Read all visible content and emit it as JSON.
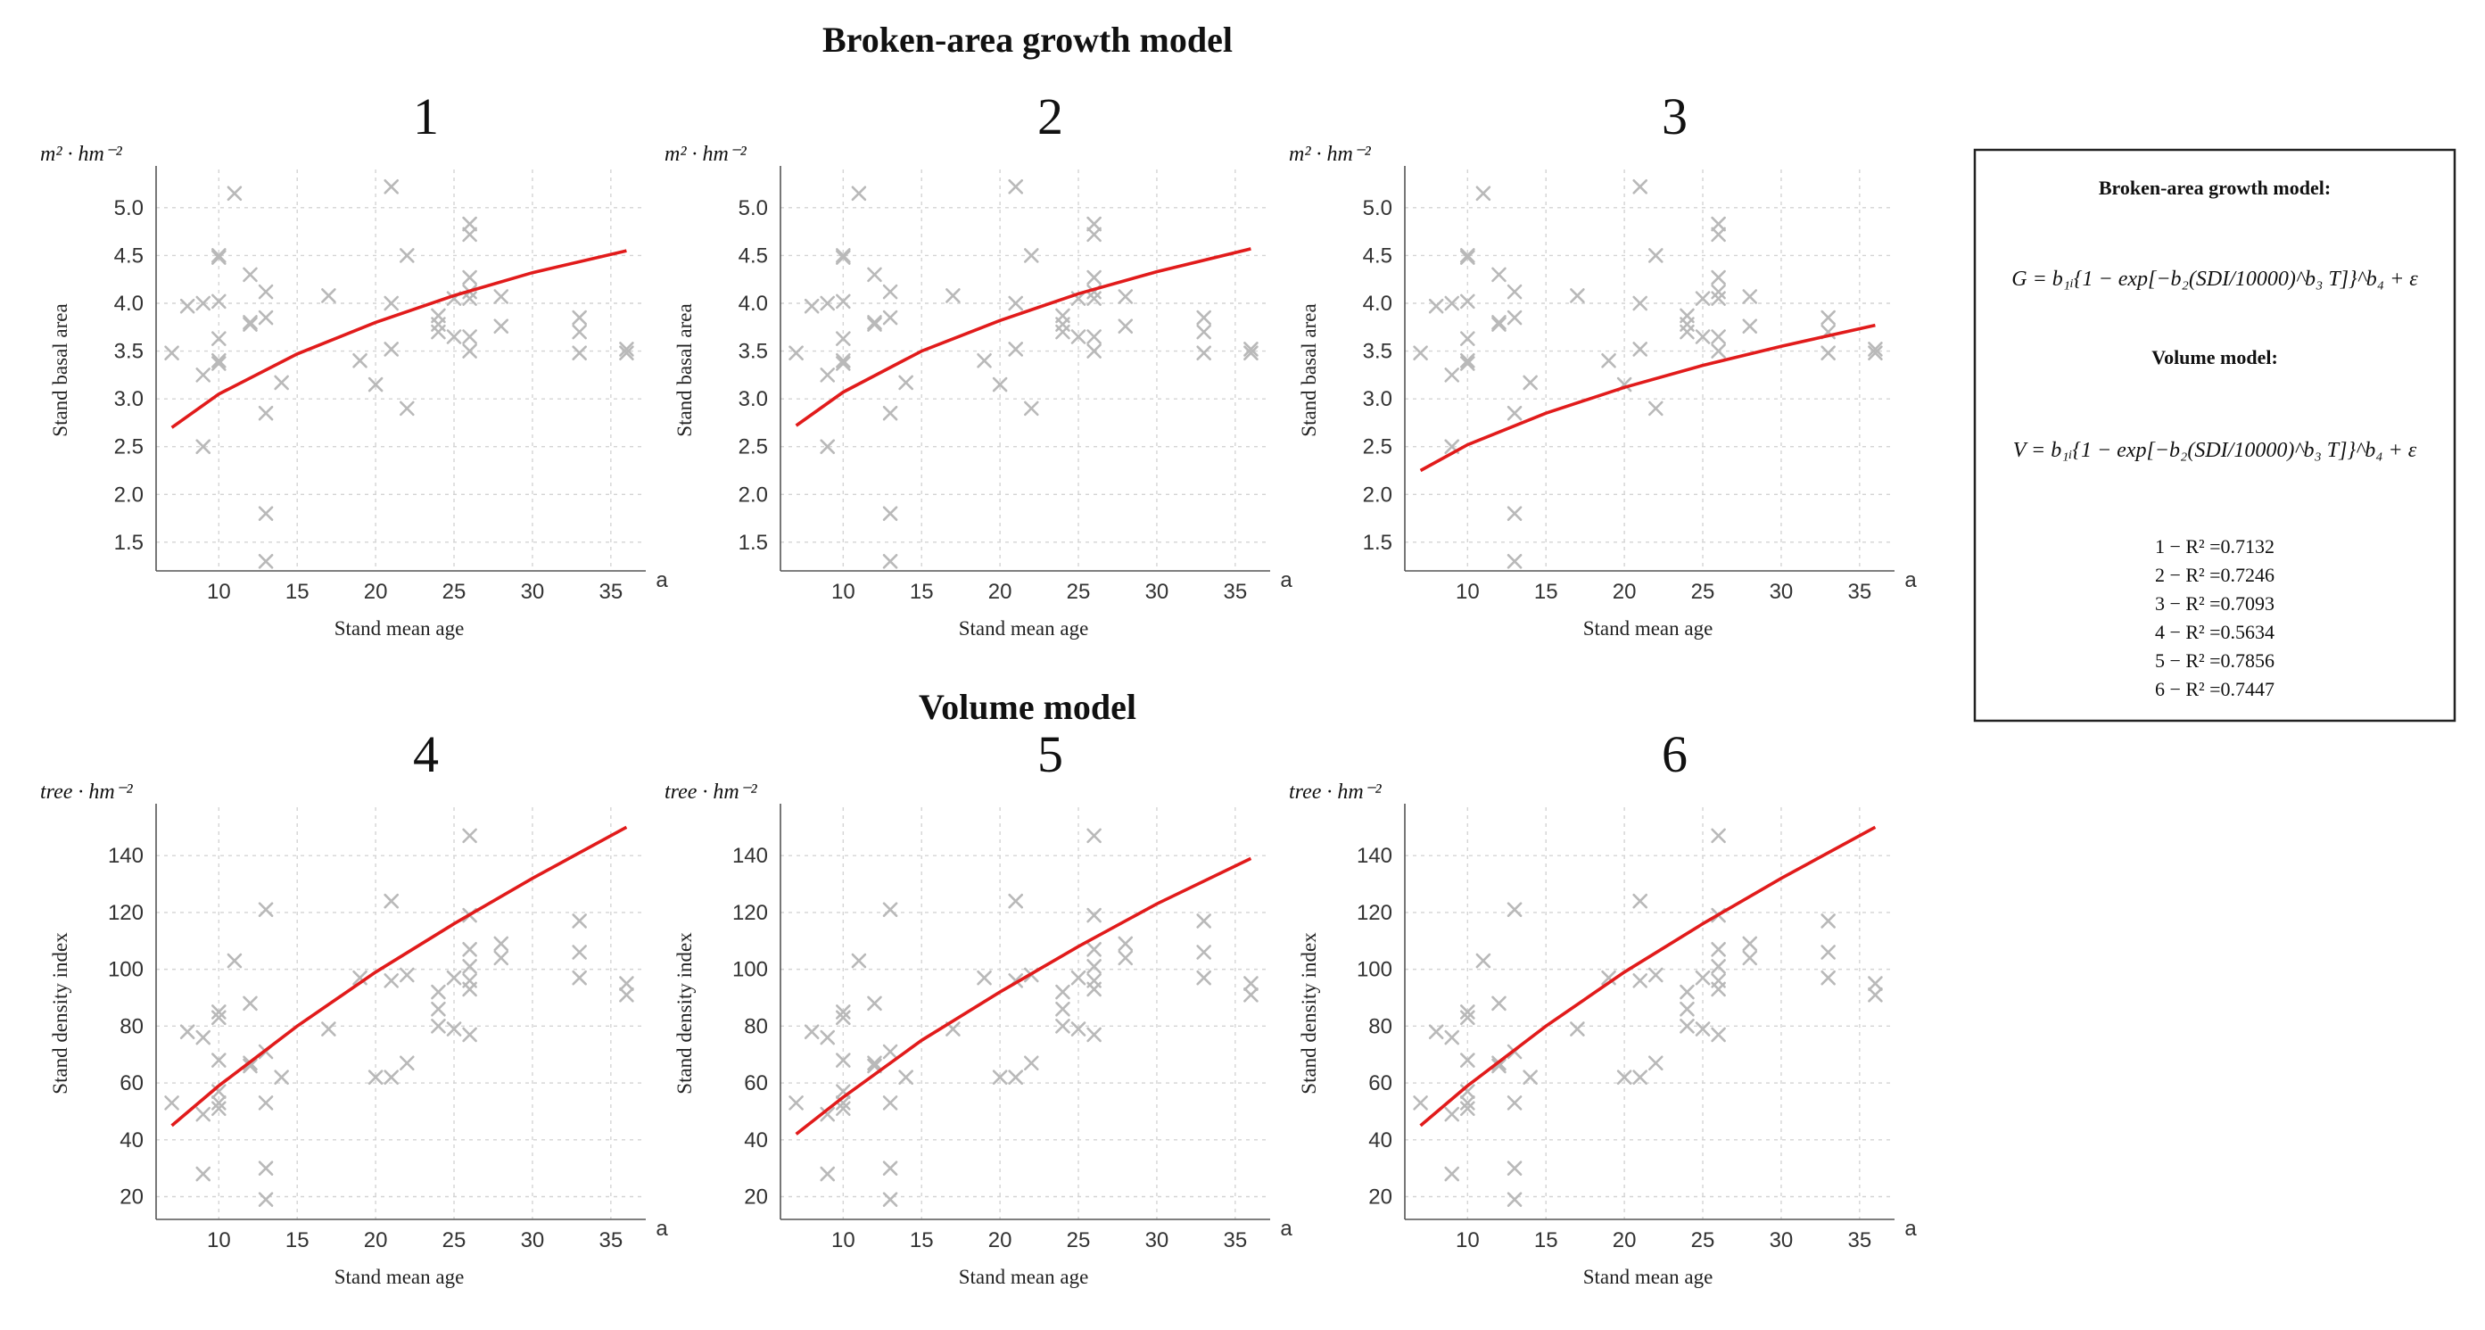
{
  "figure": {
    "section_titles": [
      "Broken-area growth model",
      "Volume model"
    ]
  },
  "scatter": {
    "x": [
      7,
      8,
      9,
      9,
      9,
      10,
      10,
      10,
      10,
      10,
      10,
      11,
      12,
      12,
      12,
      13,
      13,
      13,
      13,
      13,
      14,
      17,
      19,
      20,
      21,
      21,
      21,
      22,
      22,
      24,
      24,
      24,
      25,
      25,
      26,
      26,
      26,
      26,
      26,
      26,
      26,
      28,
      28,
      33,
      33,
      33,
      36,
      36
    ],
    "basal_area": [
      3.48,
      3.97,
      4.0,
      3.25,
      2.5,
      4.5,
      4.48,
      4.02,
      3.63,
      3.37,
      3.4,
      5.15,
      4.3,
      3.8,
      3.78,
      4.12,
      3.85,
      2.85,
      1.8,
      1.3,
      3.17,
      4.08,
      3.4,
      3.15,
      5.22,
      3.52,
      4.0,
      4.5,
      2.9,
      3.87,
      3.78,
      3.7,
      3.65,
      4.05,
      4.83,
      4.72,
      4.27,
      4.12,
      3.65,
      3.5,
      4.05,
      4.07,
      3.76,
      3.85,
      3.7,
      3.48,
      3.52,
      3.48
    ],
    "density_index": [
      53,
      78,
      76,
      28,
      49,
      85,
      83,
      68,
      57,
      53,
      51,
      103,
      88,
      67,
      66,
      121,
      71,
      53,
      30,
      19,
      62,
      79,
      97,
      62,
      124,
      62,
      96,
      67,
      98,
      92,
      86,
      80,
      97,
      79,
      147,
      119,
      107,
      101,
      96,
      93,
      77,
      109,
      104,
      117,
      106,
      97,
      95,
      91
    ]
  },
  "chart_data": [
    {
      "type": "scatter",
      "panel": "1",
      "title": "1",
      "unit": "m² · hm⁻²",
      "xlabel": "Stand mean age",
      "ylabel": "Stand basal area",
      "x_unit": "a",
      "xlim": [
        6,
        37
      ],
      "ylim": [
        1.2,
        5.4
      ],
      "xticks": [
        10,
        15,
        20,
        25,
        30,
        35
      ],
      "yticks": [
        1.5,
        2.0,
        2.5,
        3.0,
        3.5,
        4.0,
        4.5,
        5.0
      ],
      "ytick_labels": [
        "1.5",
        "2.0",
        "2.5",
        "3.0",
        "3.5",
        "4.0",
        "4.5",
        "5.0"
      ],
      "series": [
        {
          "name": "observed",
          "kind": "scatter",
          "data_ref": "basal_area"
        },
        {
          "name": "fitted",
          "kind": "line",
          "x": [
            7,
            10,
            15,
            20,
            25,
            30,
            36
          ],
          "y": [
            2.7,
            3.05,
            3.47,
            3.8,
            4.08,
            4.32,
            4.55
          ]
        }
      ]
    },
    {
      "type": "scatter",
      "panel": "2",
      "title": "2",
      "unit": "m² · hm⁻²",
      "xlabel": "Stand mean age",
      "ylabel": "Stand basal area",
      "x_unit": "a",
      "xlim": [
        6,
        37
      ],
      "ylim": [
        1.2,
        5.4
      ],
      "xticks": [
        10,
        15,
        20,
        25,
        30,
        35
      ],
      "yticks": [
        1.5,
        2.0,
        2.5,
        3.0,
        3.5,
        4.0,
        4.5,
        5.0
      ],
      "ytick_labels": [
        "1.5",
        "2.0",
        "2.5",
        "3.0",
        "3.5",
        "4.0",
        "4.5",
        "5.0"
      ],
      "series": [
        {
          "name": "observed",
          "kind": "scatter",
          "data_ref": "basal_area"
        },
        {
          "name": "fitted",
          "kind": "line",
          "x": [
            7,
            10,
            15,
            20,
            25,
            30,
            36
          ],
          "y": [
            2.72,
            3.07,
            3.5,
            3.82,
            4.1,
            4.33,
            4.57
          ]
        }
      ]
    },
    {
      "type": "scatter",
      "panel": "3",
      "title": "3",
      "unit": "m² · hm⁻²",
      "xlabel": "Stand mean age",
      "ylabel": "Stand basal area",
      "x_unit": "a",
      "xlim": [
        6,
        37
      ],
      "ylim": [
        1.2,
        5.4
      ],
      "xticks": [
        10,
        15,
        20,
        25,
        30,
        35
      ],
      "yticks": [
        1.5,
        2.0,
        2.5,
        3.0,
        3.5,
        4.0,
        4.5,
        5.0
      ],
      "ytick_labels": [
        "1.5",
        "2.0",
        "2.5",
        "3.0",
        "3.5",
        "4.0",
        "4.5",
        "5.0"
      ],
      "series": [
        {
          "name": "observed",
          "kind": "scatter",
          "data_ref": "basal_area"
        },
        {
          "name": "fitted",
          "kind": "line",
          "x": [
            7,
            10,
            15,
            20,
            25,
            30,
            36
          ],
          "y": [
            2.25,
            2.52,
            2.85,
            3.12,
            3.35,
            3.55,
            3.77
          ]
        }
      ]
    },
    {
      "type": "scatter",
      "panel": "4",
      "title": "4",
      "unit": "tree · hm⁻²",
      "xlabel": "Stand mean age",
      "ylabel": "Stand density index",
      "x_unit": "a",
      "xlim": [
        6,
        37
      ],
      "ylim": [
        12,
        157
      ],
      "xticks": [
        10,
        15,
        20,
        25,
        30,
        35
      ],
      "yticks": [
        20,
        40,
        60,
        80,
        100,
        120,
        140
      ],
      "ytick_labels": [
        "20",
        "40",
        "60",
        "80",
        "100",
        "120",
        "140"
      ],
      "series": [
        {
          "name": "observed",
          "kind": "scatter",
          "data_ref": "density_index"
        },
        {
          "name": "fitted",
          "kind": "line",
          "x": [
            7,
            10,
            15,
            20,
            25,
            30,
            36
          ],
          "y": [
            45,
            59,
            80,
            99,
            116,
            132,
            150
          ]
        }
      ]
    },
    {
      "type": "scatter",
      "panel": "5",
      "title": "5",
      "unit": "tree · hm⁻²",
      "xlabel": "Stand mean age",
      "ylabel": "Stand density index",
      "x_unit": "a",
      "xlim": [
        6,
        37
      ],
      "ylim": [
        12,
        157
      ],
      "xticks": [
        10,
        15,
        20,
        25,
        30,
        35
      ],
      "yticks": [
        20,
        40,
        60,
        80,
        100,
        120,
        140
      ],
      "ytick_labels": [
        "20",
        "40",
        "60",
        "80",
        "100",
        "120",
        "140"
      ],
      "series": [
        {
          "name": "observed",
          "kind": "scatter",
          "data_ref": "density_index"
        },
        {
          "name": "fitted",
          "kind": "line",
          "x": [
            7,
            10,
            15,
            20,
            25,
            30,
            36
          ],
          "y": [
            42,
            55,
            75,
            92,
            108,
            123,
            139
          ]
        }
      ]
    },
    {
      "type": "scatter",
      "panel": "6",
      "title": "6",
      "unit": "tree · hm⁻²",
      "xlabel": "Stand mean age",
      "ylabel": "Stand density index",
      "x_unit": "a",
      "xlim": [
        6,
        37
      ],
      "ylim": [
        12,
        157
      ],
      "xticks": [
        10,
        15,
        20,
        25,
        30,
        35
      ],
      "yticks": [
        20,
        40,
        60,
        80,
        100,
        120,
        140
      ],
      "ytick_labels": [
        "20",
        "40",
        "60",
        "80",
        "100",
        "120",
        "140"
      ],
      "series": [
        {
          "name": "observed",
          "kind": "scatter",
          "data_ref": "density_index"
        },
        {
          "name": "fitted",
          "kind": "line",
          "x": [
            7,
            10,
            15,
            20,
            25,
            30,
            36
          ],
          "y": [
            45,
            59,
            80,
            99,
            116,
            132,
            150
          ]
        }
      ]
    }
  ],
  "legend_box": {
    "growth_title": "Broken-area growth model:",
    "growth_equation": "G = b₁ᵢ{1 − exp[−b₂(SDI/10000)^b₃ T]}^b₄ + ε",
    "volume_title": "Volume model:",
    "volume_equation": "V = b₁ᵢ{1 − exp[−b₂(SDI/10000)^b₃ T]}^b₄ + ε",
    "r2": [
      "1 − R² =0.7132",
      "2 − R² =0.7246",
      "3 − R² =0.7093",
      "4 − R² =0.5634",
      "5 − R² =0.7856",
      "6 − R² =0.7447"
    ]
  },
  "colors": {
    "fit_line": "#e11b1b",
    "points": "#b9b9b9",
    "grid": "#d4d4d4"
  }
}
